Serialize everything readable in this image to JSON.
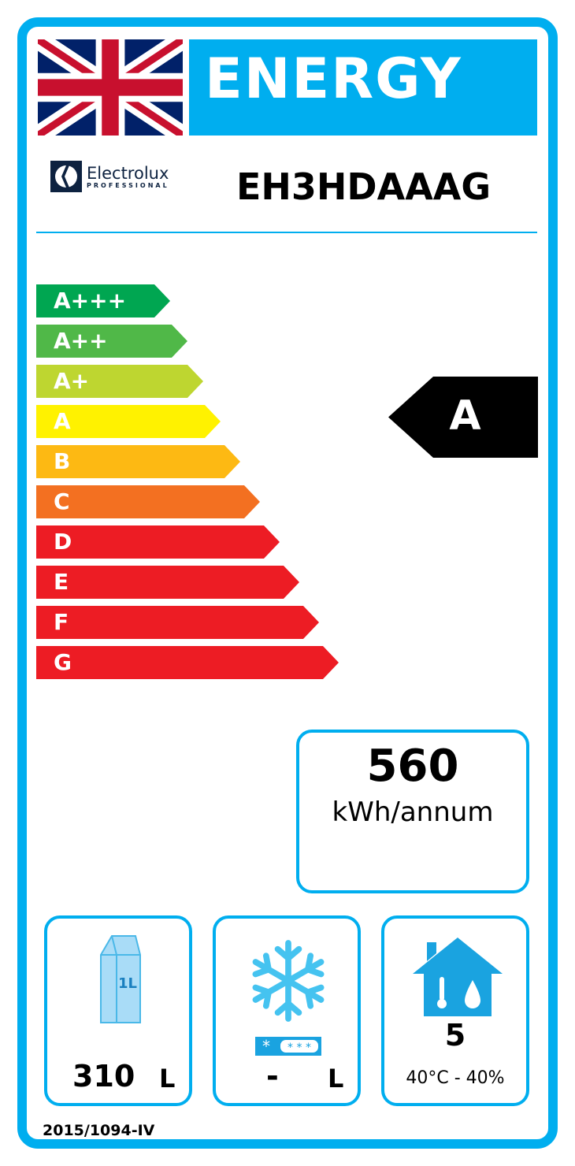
{
  "header": {
    "title": "ENERGY",
    "flag_icon": "uk-flag-icon"
  },
  "brand": {
    "name": "Electrolux",
    "sub": "PROFESSIONAL"
  },
  "model": "EH3HDAAAG",
  "scale": [
    {
      "label": "A+++",
      "color": "#00a651"
    },
    {
      "label": "A++",
      "color": "#50b848"
    },
    {
      "label": "A+",
      "color": "#bed630"
    },
    {
      "label": "A",
      "color": "#fff200"
    },
    {
      "label": "B",
      "color": "#fdb913"
    },
    {
      "label": "C",
      "color": "#f37021"
    },
    {
      "label": "D",
      "color": "#ed1c24"
    },
    {
      "label": "E",
      "color": "#ed1c24"
    },
    {
      "label": "F",
      "color": "#ed1c24"
    },
    {
      "label": "G",
      "color": "#ed1c24"
    }
  ],
  "rating": "A",
  "consumption": {
    "value": "560",
    "unit": "kWh/annum"
  },
  "storage": {
    "value": "310",
    "unit": "L",
    "icon_label": "1L"
  },
  "freezer": {
    "value": "-",
    "unit": "L"
  },
  "climate": {
    "class": "5",
    "conditions": "40°C - 40%"
  },
  "regulation": "2015/1094-IV",
  "accent": "#00aeef"
}
